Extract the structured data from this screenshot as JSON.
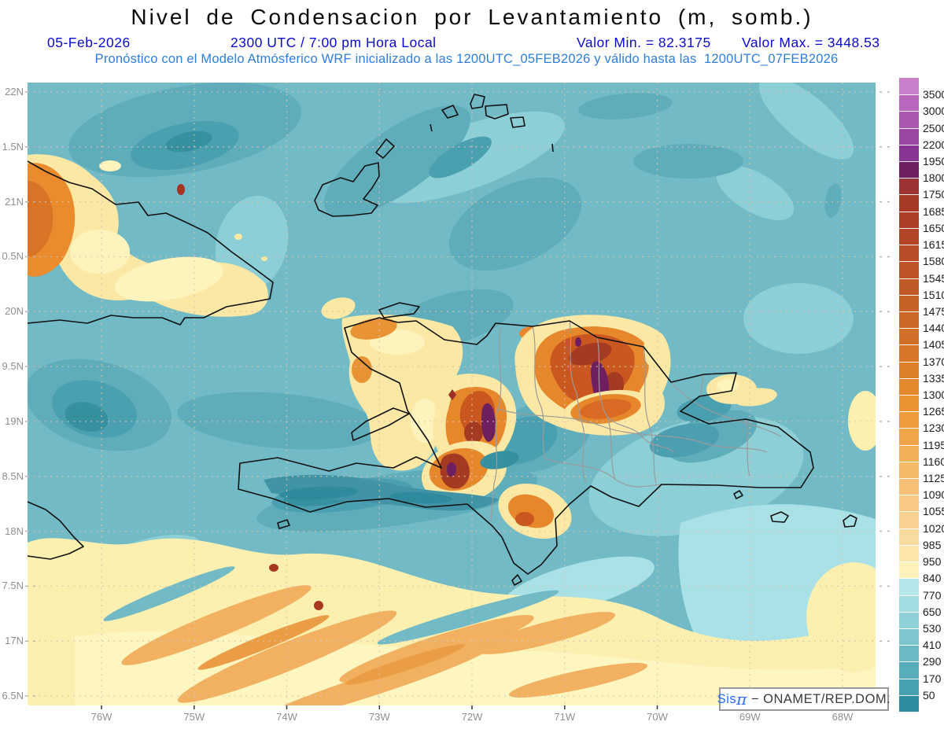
{
  "title": "Nivel de Condensacion por Levantamiento (m, somb.)",
  "subtitle": {
    "date": "05-Feb-2026",
    "time": "2300 UTC / 7:00 pm Hora Local",
    "min_label": "Valor Min. = 82.3175",
    "max_label": "Valor Max. = 3448.53",
    "model_line": "Pronóstico con el Modelo Atmósferico WRF inicializado a las 1200UTC_05FEB2026 y válido hasta las  1200UTC_07FEB2026"
  },
  "values": {
    "min": 82.3175,
    "max": 3448.53,
    "units": "m"
  },
  "axes": {
    "x_labels": [
      "76W",
      "75W",
      "74W",
      "73W",
      "72W",
      "71W",
      "70W",
      "69W",
      "68W"
    ],
    "y_labels": [
      "22N",
      "1.5N",
      "21N",
      "0.5N",
      "20N",
      "9.5N",
      "19N",
      "8.5N",
      "18N",
      "7.5N",
      "17N",
      "6.5N"
    ]
  },
  "colorbar": {
    "labels": [
      "3500",
      "3000",
      "2500",
      "2200",
      "1950",
      "1800",
      "1750",
      "1685",
      "1650",
      "1615",
      "1580",
      "1545",
      "1510",
      "1475",
      "1440",
      "1405",
      "1370",
      "1335",
      "1300",
      "1265",
      "1230",
      "1195",
      "1160",
      "1125",
      "1090",
      "1055",
      "1020",
      "985",
      "950",
      "840",
      "770",
      "650",
      "530",
      "410",
      "290",
      "170",
      "50"
    ],
    "colors": [
      "#c77fc9",
      "#b868bc",
      "#a958b0",
      "#9947a3",
      "#873492",
      "#6d1f5f",
      "#9e3333",
      "#a83a2a",
      "#ad3f28",
      "#b24527",
      "#b84c27",
      "#bd5327",
      "#c25a27",
      "#c76027",
      "#cc6727",
      "#d26e27",
      "#d77628",
      "#dd7f29",
      "#e3882c",
      "#e89231",
      "#ec9c3b",
      "#f0a549",
      "#f3ae58",
      "#f5b768",
      "#f7c077",
      "#f8c985",
      "#f9d292",
      "#fadb9f",
      "#fce5ab",
      "#fdf2ba",
      "#b5e7ea",
      "#a2dce1",
      "#90d1d8",
      "#7dc5cf",
      "#6ab9c5",
      "#58adbc",
      "#45a1b2",
      "#2f8ba0"
    ]
  },
  "palette": {
    "sea_base": "#72bac5",
    "title_color": "#0a0a0a",
    "line2_color": "#0b0bcf",
    "line3_color": "#2e7ede",
    "axis_label_color": "#8f8f8f"
  },
  "watermark": {
    "sis": "Sis",
    "pi": "π",
    "sep": " − ",
    "org": "ONAMET/REP.DOM."
  }
}
